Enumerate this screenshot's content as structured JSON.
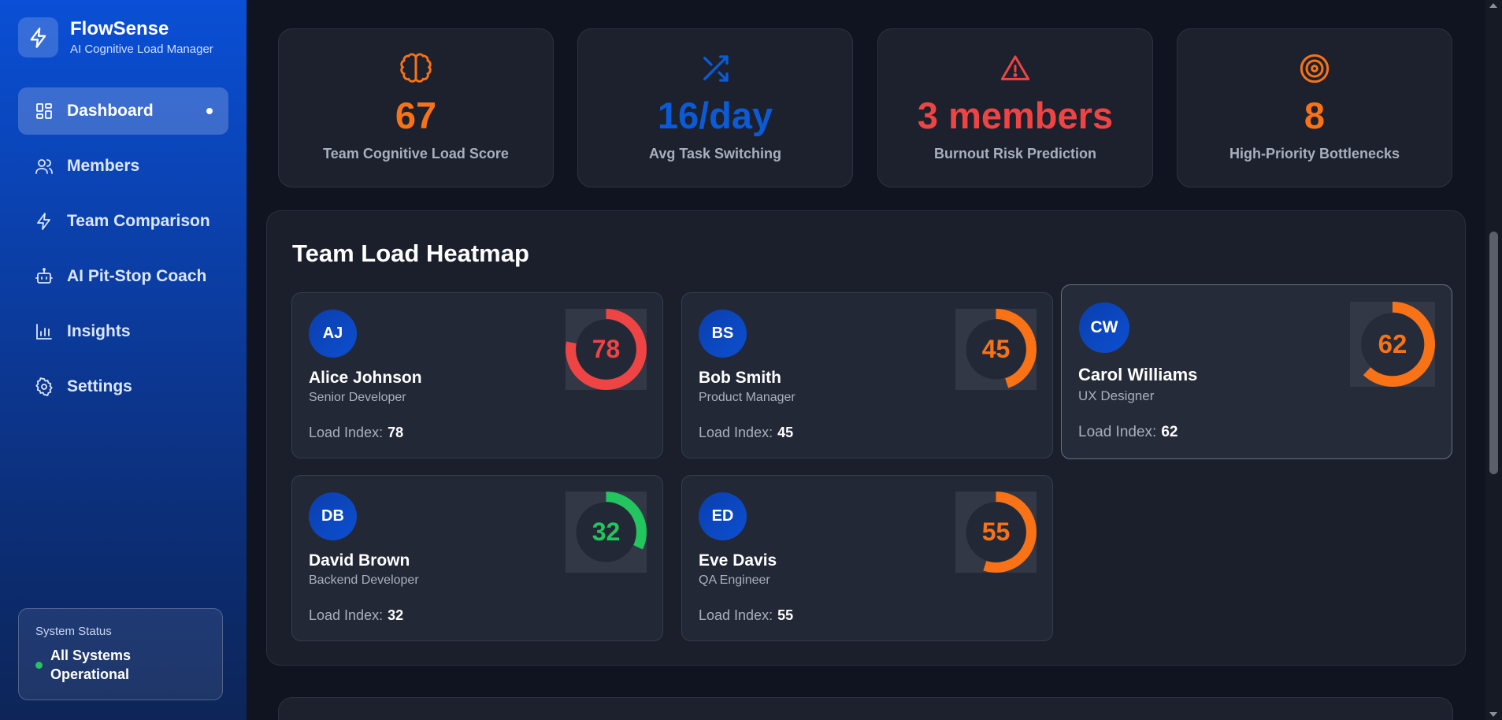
{
  "brand": {
    "name": "FlowSense",
    "subtitle": "AI Cognitive Load Manager",
    "icon": "lightning-icon"
  },
  "sidebar": {
    "items": [
      {
        "label": "Dashboard",
        "icon": "dashboard-icon",
        "active": true
      },
      {
        "label": "Members",
        "icon": "users-icon",
        "active": false
      },
      {
        "label": "Team Comparison",
        "icon": "lightning-icon",
        "active": false
      },
      {
        "label": "AI Pit-Stop Coach",
        "icon": "robot-icon",
        "active": false
      },
      {
        "label": "Insights",
        "icon": "bar-chart-icon",
        "active": false
      },
      {
        "label": "Settings",
        "icon": "gear-icon",
        "active": false
      }
    ],
    "status": {
      "title": "System Status",
      "text": "All Systems Operational",
      "color": "#22c55e"
    }
  },
  "stats": [
    {
      "value": "67",
      "label": "Team Cognitive Load Score",
      "icon": "brain-icon",
      "color": "#f97316"
    },
    {
      "value": "16/day",
      "label": "Avg Task Switching",
      "icon": "shuffle-icon",
      "color": "#0b5bd6"
    },
    {
      "value": "3 members",
      "label": "Burnout Risk Prediction",
      "icon": "warning-icon",
      "color": "#ef4444"
    },
    {
      "value": "8",
      "label": "High-Priority Bottlenecks",
      "icon": "target-icon",
      "color": "#f97316"
    }
  ],
  "heatmap": {
    "title": "Team Load Heatmap",
    "load_label": "Load Index:",
    "members": [
      {
        "initials": "AJ",
        "name": "Alice Johnson",
        "role": "Senior Developer",
        "load": 78,
        "load_text": "78",
        "color": "#ef4444"
      },
      {
        "initials": "BS",
        "name": "Bob Smith",
        "role": "Product Manager",
        "load": 45,
        "load_text": "45",
        "color": "#f97316"
      },
      {
        "initials": "CW",
        "name": "Carol Williams",
        "role": "UX Designer",
        "load": 62,
        "load_text": "62",
        "color": "#f97316"
      },
      {
        "initials": "DB",
        "name": "David Brown",
        "role": "Backend Developer",
        "load": 32,
        "load_text": "32",
        "color": "#22c55e"
      },
      {
        "initials": "ED",
        "name": "Eve Davis",
        "role": "QA Engineer",
        "load": 55,
        "load_text": "55",
        "color": "#f97316"
      }
    ]
  }
}
